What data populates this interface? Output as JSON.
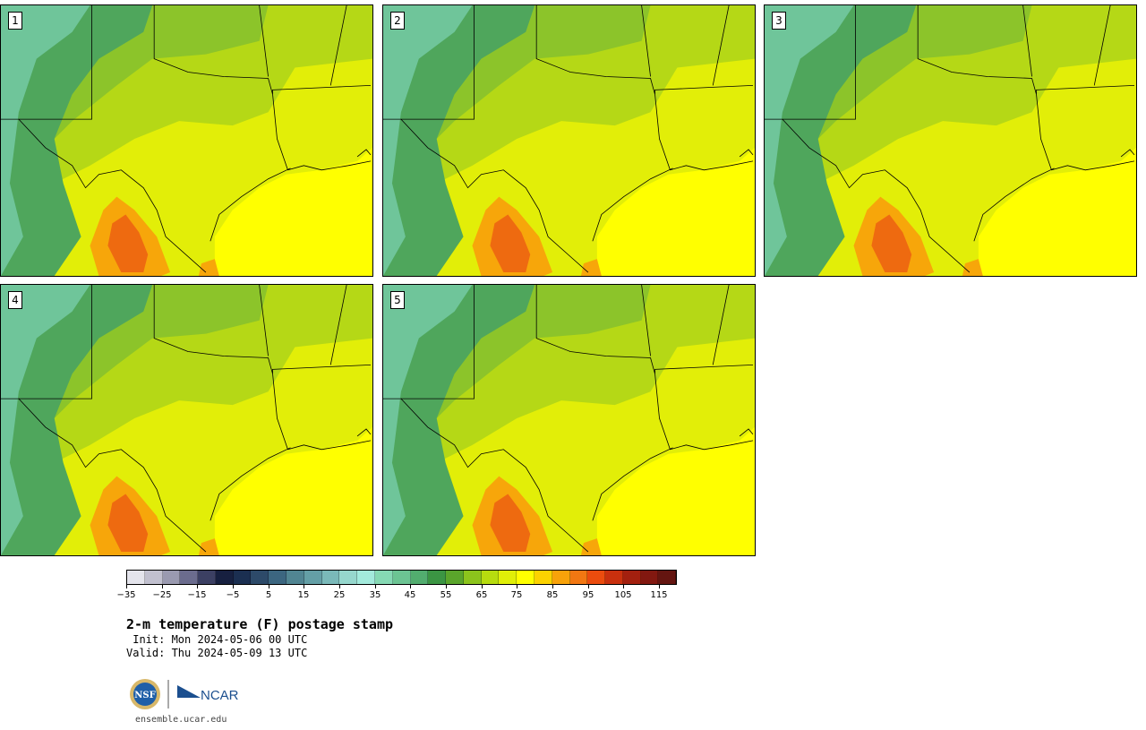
{
  "panels": [
    {
      "label": "1"
    },
    {
      "label": "2"
    },
    {
      "label": "3"
    },
    {
      "label": "4"
    },
    {
      "label": "5"
    }
  ],
  "map": {
    "colors": {
      "cool_highland": "#6fc59a",
      "highland": "#4fa65c",
      "mid": "#8cc42a",
      "plains": "#b5d816",
      "warm": "#e2ee08",
      "gulf": "#ffff00",
      "hot": "#f7a60a",
      "hottest": "#ee6a10"
    }
  },
  "colorbar": {
    "colors": [
      "#e4e4ec",
      "#c1c0cf",
      "#9a9ab0",
      "#6b6c8e",
      "#3c4063",
      "#172040",
      "#1b2f51",
      "#2d4a69",
      "#3c6680",
      "#518592",
      "#649fa6",
      "#7ab9b9",
      "#96d7cd",
      "#a3eadc",
      "#86d9b4",
      "#6cc493",
      "#52ad6f",
      "#3b9543",
      "#5aa52b",
      "#8cc41c",
      "#b7dc0f",
      "#e0ef08",
      "#ffff00",
      "#fcd200",
      "#f8a20a",
      "#f27712",
      "#eb4c0e",
      "#c9300e",
      "#a3200f",
      "#821810",
      "#641510"
    ],
    "tick_labels": [
      "−35",
      "−25",
      "−15",
      "−5",
      "5",
      "15",
      "25",
      "35",
      "45",
      "55",
      "65",
      "75",
      "85",
      "95",
      "105",
      "115"
    ]
  },
  "title": "2-m temperature (F) postage stamp",
  "init": " Init: Mon 2024-05-06 00 UTC",
  "valid": "Valid: Thu 2024-05-09 13 UTC",
  "logos": {
    "nsf": "NSF",
    "ncar": "NCAR"
  },
  "website": "ensemble.ucar.edu"
}
